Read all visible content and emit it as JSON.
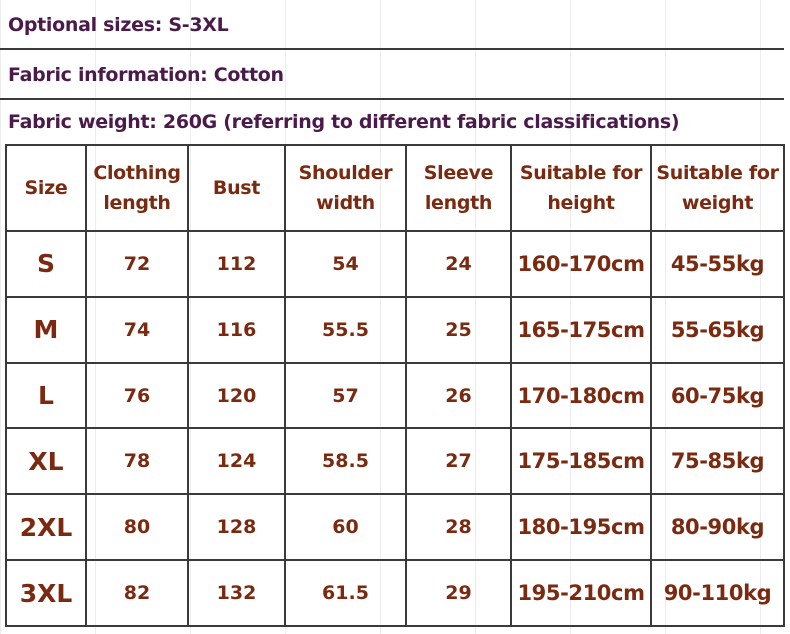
{
  "info": {
    "sizes": "Optional sizes: S-3XL",
    "fabric": "Fabric information: Cotton",
    "weight": "Fabric weight: 260G (referring to different fabric classifications)"
  },
  "table": {
    "headers": [
      [
        "Size"
      ],
      [
        "Clothing",
        "length"
      ],
      [
        "Bust"
      ],
      [
        "Shoulder",
        "width"
      ],
      [
        "Sleeve",
        "length"
      ],
      [
        "Suitable for",
        "height"
      ],
      [
        "Suitable for",
        "weight"
      ]
    ],
    "rows": [
      [
        "S",
        "72",
        "112",
        "54",
        "24",
        "160-170cm",
        "45-55kg"
      ],
      [
        "M",
        "74",
        "116",
        "55.5",
        "25",
        "165-175cm",
        "55-65kg"
      ],
      [
        "L",
        "76",
        "120",
        "57",
        "26",
        "170-180cm",
        "60-75kg"
      ],
      [
        "XL",
        "78",
        "124",
        "58.5",
        "27",
        "175-185cm",
        "75-85kg"
      ],
      [
        "2XL",
        "80",
        "128",
        "60",
        "28",
        "180-195cm",
        "80-90kg"
      ],
      [
        "3XL",
        "82",
        "132",
        "61.5",
        "29",
        "195-210cm",
        "90-110kg"
      ]
    ]
  },
  "colors": {
    "info_text": "#4a1a4a",
    "table_text": "#7a2a10",
    "border": "#3a3a3a"
  }
}
